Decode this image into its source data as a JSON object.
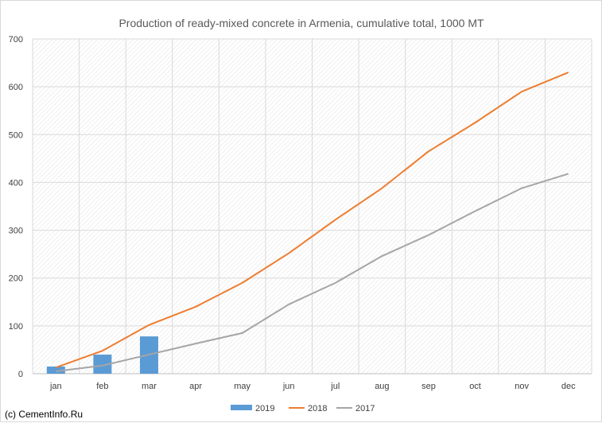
{
  "chart_data": {
    "type": "bar",
    "title": "Production of ready-mixed concrete in Armenia, cumulative total, 1000 MT",
    "categories": [
      "jan",
      "feb",
      "mar",
      "apr",
      "may",
      "jun",
      "jul",
      "aug",
      "sep",
      "oct",
      "nov",
      "dec"
    ],
    "ylim": [
      0,
      700
    ],
    "yticks": [
      0,
      100,
      200,
      300,
      400,
      500,
      600,
      700
    ],
    "grid": true,
    "legend_position": "bottom",
    "series": [
      {
        "name": "2019",
        "type": "bar",
        "color": "#5b9bd5",
        "values": [
          15,
          40,
          78,
          null,
          null,
          null,
          null,
          null,
          null,
          null,
          null,
          null
        ]
      },
      {
        "name": "2018",
        "type": "line",
        "color": "#ed7d31",
        "values": [
          13,
          48,
          102,
          140,
          190,
          252,
          322,
          388,
          465,
          525,
          590,
          630
        ]
      },
      {
        "name": "2017",
        "type": "line",
        "color": "#a5a5a5",
        "values": [
          5,
          17,
          40,
          63,
          85,
          145,
          190,
          246,
          290,
          340,
          388,
          418
        ]
      }
    ]
  },
  "credit": "(c) CementInfo.Ru"
}
